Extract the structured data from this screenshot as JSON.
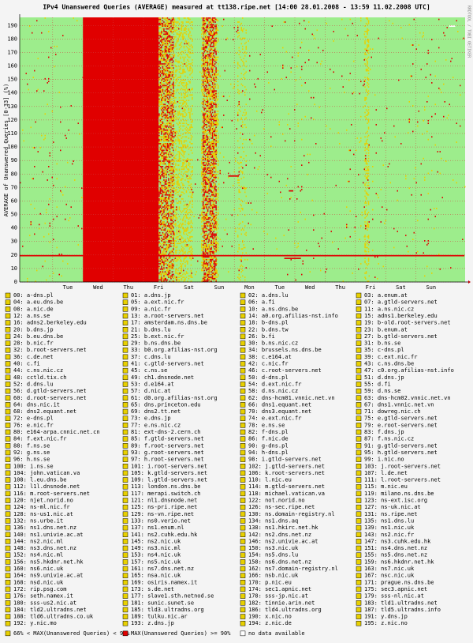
{
  "chart_data": {
    "type": "heatmap",
    "title": "IPv4 Unanswered Queries (AVERAGE)  measured at tt138.ripe.net  [14:00 28.01.2008 - 13:59 11.02.2008 UTC]",
    "y_label": "AVERAGE of Unanswered Queries [0-33] (%)",
    "watermark": "RRDTOOL / TOBI OETIKER",
    "categories": [
      "Tue",
      "Wed",
      "Thu",
      "Fri",
      "Sat",
      "Sun",
      "Mon",
      "Tue",
      "Wed",
      "Thu",
      "Fri",
      "Sat",
      "Sun"
    ],
    "ylim": [
      0,
      196
    ],
    "yticks": [
      0,
      10,
      20,
      30,
      40,
      50,
      60,
      70,
      80,
      90,
      100,
      110,
      120,
      130,
      140,
      150,
      160,
      170,
      180,
      190
    ],
    "grid": true,
    "background": "#9ded8c",
    "series": [
      {
        "name": "66% < MAX(Unanswered Queries) < 90%",
        "color": "#e8d000"
      },
      {
        "name": "MAX(Unanswered Queries) >= 90%",
        "color": "#e00000"
      },
      {
        "name": "no data available",
        "color": "#ffffff"
      }
    ],
    "blocks": [
      {
        "x0": 0.5,
        "x1": 3.0,
        "y0": 0,
        "y1": 196,
        "level": 1
      },
      {
        "x0": -1.59,
        "x1": 13.1,
        "y0": 19,
        "y1": 20,
        "level": 1
      },
      {
        "x0": 5.3,
        "x1": 5.65,
        "y0": 78,
        "y1": 79,
        "level": 1
      },
      {
        "x0": 7.3,
        "x1": 7.45,
        "y0": 67,
        "y1": 68,
        "level": 1
      },
      {
        "x0": 7.15,
        "x1": 7.7,
        "y0": 17,
        "y1": 18,
        "level": 1
      },
      {
        "x0": 12.6,
        "x1": 12.8,
        "y0": 189,
        "y1": 190,
        "level": 2
      }
    ],
    "speckles": [
      {
        "x0": 3.0,
        "x1": 3.5,
        "density": 0.45,
        "level": 1
      },
      {
        "x0": 3.0,
        "x1": 4.1,
        "density": 0.3,
        "level": 0
      },
      {
        "x0": 4.45,
        "x1": 4.9,
        "density": 0.5,
        "level": 1
      },
      {
        "x0": 4.4,
        "x1": 4.95,
        "density": 0.3,
        "level": 0
      },
      {
        "x0": 5.6,
        "x1": 5.9,
        "density": 0.12,
        "level": 0
      },
      {
        "x0": 9.8,
        "x1": 9.92,
        "density": 0.3,
        "level": 0
      },
      {
        "x0": -1.59,
        "x1": 13.1,
        "density": 0.006,
        "level": 1
      },
      {
        "x0": -1.59,
        "x1": 13.1,
        "density": 0.006,
        "level": 0
      }
    ],
    "servers": [
      "00: a-dns.pl",
      "01: a.dns.jp",
      "02: a.dns.lu",
      "03: a.enum.at",
      "04: a.eu.dns.be",
      "05: a.ext.nic.fr",
      "06: a.fi",
      "07: a.gtld-servers.net",
      "08: a.nic.de",
      "09: a.nic.fr",
      "10: a.ns.dns.be",
      "11: a.ns.nic.cz",
      "12: a.ns.se",
      "13: a.root-servers.net",
      "14: a0.org.afilias-nst.info",
      "15: adns1.berkeley.edu",
      "16: adns2.berkeley.edu",
      "17: amsterdam.ns.dns.be",
      "18: b-dns.pl",
      "19: b-old.root-servers.net",
      "20: b.dns.jp",
      "21: b.dns.lu",
      "22: b.dns.tw",
      "23: b.enum.at",
      "24: b.eu.dns.be",
      "25: b.ext.nic.fr",
      "26: b.fi",
      "27: b.gtld-servers.net",
      "28: b.nic.fr",
      "29: b.ns.dns.be",
      "30: b.ns.nic.cz",
      "31: b.ns.se",
      "32: b.root-servers.net",
      "33: b0.org.afilias-nst.org",
      "34: brussels.ns.dns.be",
      "35: c-dns.pl",
      "36: c.de.net",
      "37: c.dns.lu",
      "38: c.e164.at",
      "39: c.ext.nic.fr",
      "40: c.fi",
      "41: c.gtld-servers.net",
      "42: c.nic.fr",
      "43: c.ns.dns.be",
      "44: c.ns.nic.cz",
      "45: c.ns.se",
      "46: c.root-servers.net",
      "47: c0.org.afilias-nst.info",
      "48: cctld.tix.ch",
      "49: ch1.dnsnode.net",
      "50: d-dns.pl",
      "51: d.dns.jp",
      "52: d.dns.lu",
      "53: d.e164.at",
      "54: d.ext.nic.fr",
      "55: d.fi",
      "56: d.gtld-servers.net",
      "57: d.nic.at",
      "58: d.ns.nic.cz",
      "59: d.ns.se",
      "60: d.root-servers.net",
      "61: d0.org.afilias-nst.org",
      "62: dns-hcm01.vnnic.net.vn",
      "63: dns-hcm02.vnnic.net.vn",
      "64: dns.nic.it",
      "65: dns.princeton.edu",
      "66: dns1.equant.net",
      "67: dns1.vnnic.net.vn",
      "68: dns2.equant.net",
      "69: dns2.tt.net",
      "70: dns3.equant.net",
      "71: dowreg.nic.ch",
      "72: e-dns.pl",
      "73: e.dns.jp",
      "74: e.ext.nic.fr",
      "75: e.gtld-servers.net",
      "76: e.nic.fr",
      "77: e.ns.nic.cz",
      "78: e.ns.se",
      "79: e.root-servers.net",
      "80: e164-arpa.cnnic.net.cn",
      "81: ext-dns-2.cern.ch",
      "82: f-dns.pl",
      "83: f.dns.jp",
      "84: f.ext.nic.fr",
      "85: f.gtld-servers.net",
      "86: f.nic.de",
      "87: f.ns.nic.cz",
      "88: f.ns.se",
      "89: f.root-servers.net",
      "90: g-dns.pl",
      "91: g.gtld-servers.net",
      "92: g.ns.se",
      "93: g.root-servers.net",
      "94: h-dns.pl",
      "95: h.gtld-servers.net",
      "96: h.ns.se",
      "97: h.root-servers.net",
      "98: i.gtld-servers.net",
      "99: i.nic.no",
      "100: i.ns.se",
      "101: i.root-servers.net",
      "102: j.gtld-servers.net",
      "103: j.root-servers.net",
      "104: john.vatican.va",
      "105: k.gtld-servers.net",
      "106: k.root-servers.net",
      "107: l.de.net",
      "108: l.eu.dns.be",
      "109: l.gtld-servers.net",
      "110: l.nic.eu",
      "111: l.root-servers.net",
      "112: l1l.dnsnode.net",
      "113: london.ns.dns.be",
      "114: m.gtld-servers.net",
      "115: m.nic.eu",
      "116: m.root-servers.net",
      "117: merapi.switch.ch",
      "118: michael.vatican.va",
      "119: milano.ns.dns.be",
      "120: njet.norid.no",
      "121: nl1.dnsnode.net",
      "122: not.norid.no",
      "123: ns-ext.isc.org",
      "124: ns-ml.nic.fr",
      "125: ns-pri.ripe.net",
      "126: ns-sec.ripe.net",
      "127: ns-uk.nic.at",
      "128: ns-us1.nic.at",
      "129: ns-vn.ripe.net",
      "130: ns.domain-registry.nl",
      "131: ns.ripe.net",
      "132: ns.urbe.it",
      "133: ns0.verio.net",
      "134: ns1.dns.aq",
      "135: ns1.dns.lu",
      "136: ns1.dns.net.nz",
      "137: ns1.enum.nl",
      "138: ns1.hkirc.net.hk",
      "139: ns1.nic.uk",
      "140: ns1.univie.ac.at",
      "141: ns2.cuhk.edu.hk",
      "142: ns2.dns.net.nz",
      "143: ns2.nic.fr",
      "144: ns2.nic.ml",
      "145: ns2.nic.uk",
      "146: ns2.univie.ac.at",
      "147: ns3.cuhk.edu.hk",
      "148: ns3.dns.net.nz",
      "149: ns3.nic.ml",
      "150: ns3.nic.uk",
      "151: ns4.dns.net.nz",
      "152: ns4.nic.ml",
      "153: ns4.nic.uk",
      "154: ns5.dns.lu",
      "155: ns5.dns.net.nz",
      "156: ns5.hkdnr.net.hk",
      "157: ns5.nic.uk",
      "158: ns6.dns.net.nz",
      "159: ns6.hkdnr.net.hk",
      "160: ns6.nic.uk",
      "161: ns7.dns.net.nz",
      "162: ns7.domain-registry.nl",
      "163: ns7.nic.uk",
      "164: ns9.univie.ac.at",
      "165: nsa.nic.uk",
      "166: nsb.nic.uk",
      "167: nsc.nic.uk",
      "168: nsd.nic.uk",
      "169: osiris.namex.it",
      "170: p.nic.eu",
      "171: prague.ns.dns.be",
      "172: rip.psg.com",
      "173: s.de.net",
      "174: sec1.apnic.net",
      "175: sec3.apnic.net",
      "176: seth.namex.it",
      "177: slave1.sth.netnod.se",
      "178: sss-jp.nic.at",
      "179: sss-nl.nic.at",
      "180: sss-us2.nic.at",
      "181: sunic.sunet.se",
      "182: tinnie.arin.net",
      "183: tld1.ultradns.net",
      "184: tld2.ultradns.net",
      "185: tld3.ultradns.org",
      "186: tld4.ultradns.org",
      "187: tld5.ultradns.info",
      "188: tld6.ultradns.co.uk",
      "189: tulku.nic.ar",
      "190: x.nic.no",
      "191: y.dns.jp",
      "192: y.nic.mo",
      "193: z.dns.jp",
      "194: z.nic.de",
      "195: z.nic.no"
    ]
  }
}
